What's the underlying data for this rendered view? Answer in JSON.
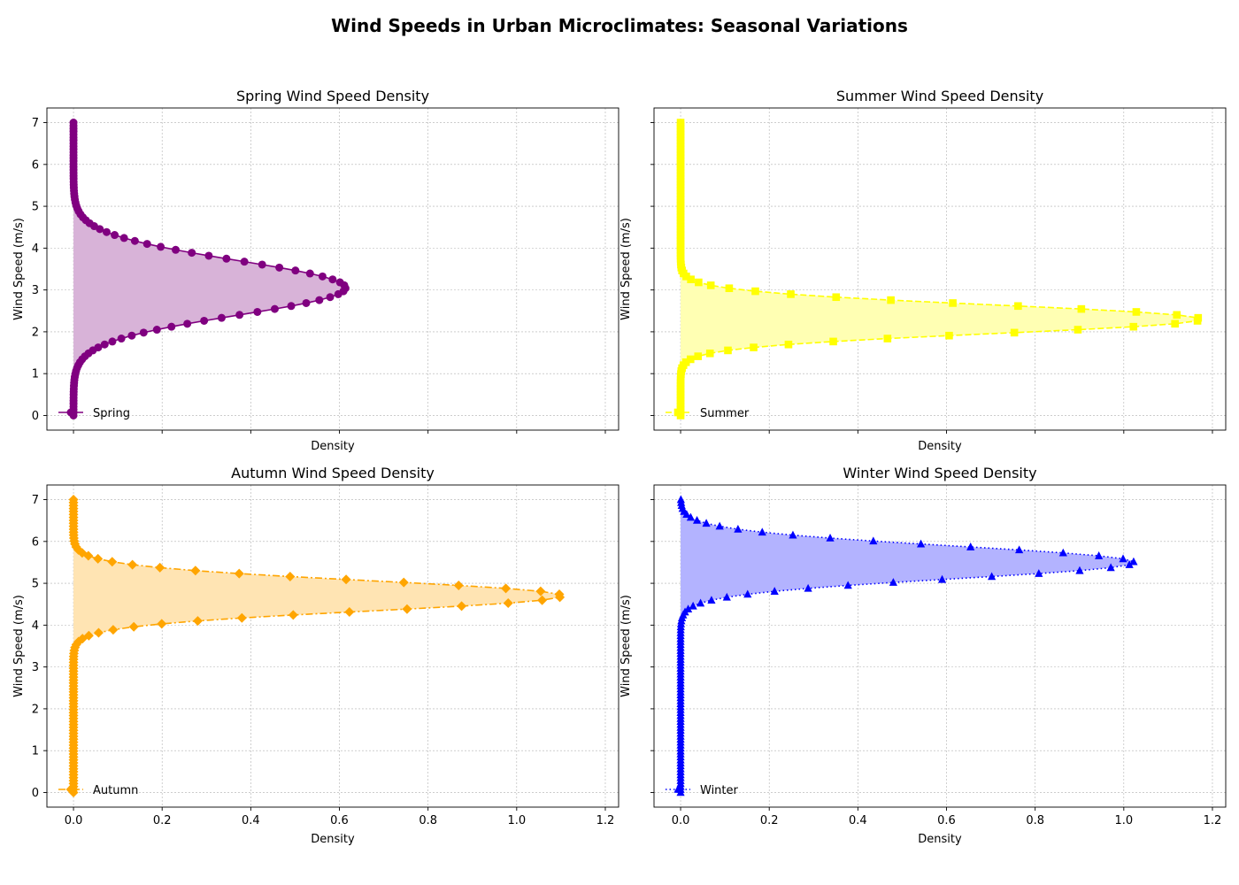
{
  "figure": {
    "title": "Wind Speeds in Urban Microclimates: Seasonal Variations"
  },
  "chart_data": [
    {
      "type": "line",
      "orientation": "density-vs-value",
      "title": "Spring Wind Speed Density",
      "xlabel": "Density",
      "ylabel": "Wind Speed (m/s)",
      "xlim": [
        -0.06,
        1.23
      ],
      "ylim": [
        -0.35,
        7.35
      ],
      "xticks": [
        0.0,
        0.2,
        0.4,
        0.6,
        0.8,
        1.0,
        1.2
      ],
      "yticks": [
        0,
        1,
        2,
        3,
        4,
        5,
        6,
        7
      ],
      "show_xtick_labels": false,
      "show_ytick_labels": true,
      "grid": true,
      "legend_position": "lower-left",
      "series": [
        {
          "name": "Spring",
          "mean": 3.05,
          "sd": 0.65,
          "range": [
            0,
            7
          ],
          "color": "#800080",
          "fill": "#d8b3d8",
          "marker": "circle",
          "linestyle": "solid"
        }
      ]
    },
    {
      "type": "line",
      "orientation": "density-vs-value",
      "title": "Summer Wind Speed Density",
      "xlabel": "Density",
      "ylabel": "Wind Speed (m/s)",
      "xlim": [
        -0.06,
        1.23
      ],
      "ylim": [
        -0.35,
        7.35
      ],
      "xticks": [
        0.0,
        0.2,
        0.4,
        0.6,
        0.8,
        1.0,
        1.2
      ],
      "yticks": [
        0,
        1,
        2,
        3,
        4,
        5,
        6,
        7
      ],
      "show_xtick_labels": false,
      "show_ytick_labels": false,
      "grid": true,
      "legend_position": "lower-left",
      "series": [
        {
          "name": "Summer",
          "mean": 2.3,
          "sd": 0.34,
          "range": [
            0,
            7
          ],
          "color": "#ffff00",
          "fill": "#ffffb3",
          "marker": "square",
          "linestyle": "dashed"
        }
      ]
    },
    {
      "type": "line",
      "orientation": "density-vs-value",
      "title": "Autumn Wind Speed Density",
      "xlabel": "Density",
      "ylabel": "Wind Speed (m/s)",
      "xlim": [
        -0.06,
        1.23
      ],
      "ylim": [
        -0.35,
        7.35
      ],
      "xticks": [
        0.0,
        0.2,
        0.4,
        0.6,
        0.8,
        1.0,
        1.2
      ],
      "yticks": [
        0,
        1,
        2,
        3,
        4,
        5,
        6,
        7
      ],
      "show_xtick_labels": true,
      "show_ytick_labels": true,
      "grid": true,
      "legend_position": "lower-left",
      "series": [
        {
          "name": "Autumn",
          "mean": 4.7,
          "sd": 0.362,
          "range": [
            0,
            7
          ],
          "color": "#ffa500",
          "fill": "#ffe4b3",
          "marker": "diamond",
          "linestyle": "dashdot"
        }
      ]
    },
    {
      "type": "line",
      "orientation": "density-vs-value",
      "title": "Winter Wind Speed Density",
      "xlabel": "Density",
      "ylabel": "Wind Speed (m/s)",
      "xlim": [
        -0.06,
        1.23
      ],
      "ylim": [
        -0.35,
        7.35
      ],
      "xticks": [
        0.0,
        0.2,
        0.4,
        0.6,
        0.8,
        1.0,
        1.2
      ],
      "yticks": [
        0,
        1,
        2,
        3,
        4,
        5,
        6,
        7
      ],
      "show_xtick_labels": true,
      "show_ytick_labels": false,
      "grid": true,
      "legend_position": "lower-left",
      "series": [
        {
          "name": "Winter",
          "mean": 5.5,
          "sd": 0.39,
          "range": [
            0,
            7
          ],
          "color": "#0000ff",
          "fill": "#b3b3ff",
          "marker": "triangle",
          "linestyle": "dotted"
        }
      ]
    }
  ]
}
